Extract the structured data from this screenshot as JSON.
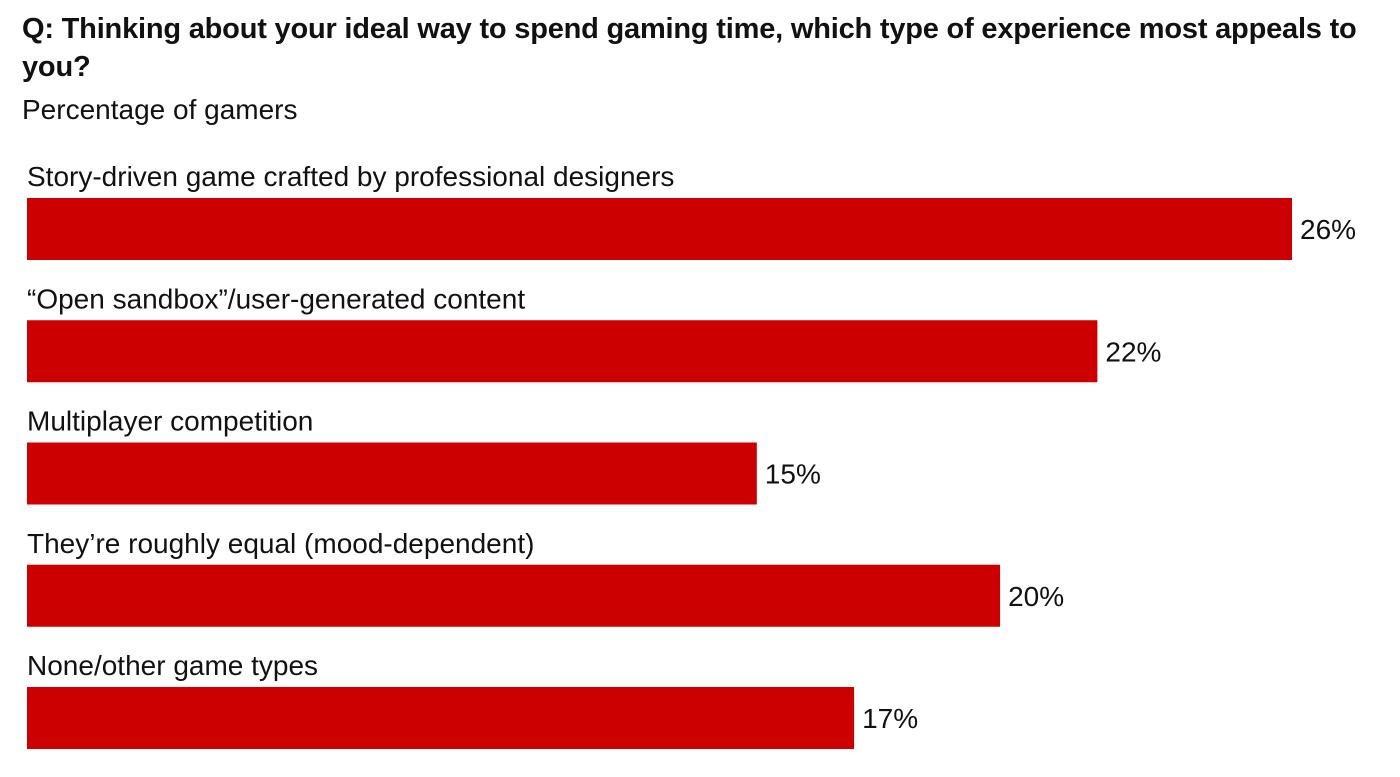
{
  "chart_data": {
    "type": "bar",
    "orientation": "horizontal",
    "title": "Q: Thinking about your ideal way to spend gaming time, which type of experience most appeals to you?",
    "subtitle": "Percentage of gamers",
    "categories": [
      "Story-driven game crafted by professional designers",
      "“Open sandbox”/user-generated content",
      "Multiplayer competition",
      "They’re roughly equal (mood-dependent)",
      "None/other game types"
    ],
    "values": [
      26,
      22,
      15,
      20,
      17
    ],
    "data_labels": [
      "26%",
      "22%",
      "15%",
      "20%",
      "17%"
    ],
    "xlabel": "",
    "ylabel": "",
    "xlim": [
      0,
      26
    ],
    "grid": false,
    "legend": "none",
    "bar_color": "#cc0000",
    "text_color": "#111111"
  }
}
